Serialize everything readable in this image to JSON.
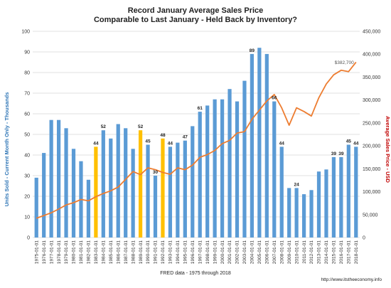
{
  "chart_data": {
    "type": "bar",
    "title": "Record January Average Sales Price",
    "subtitle": "Comparable to Last January - Held Back by Inventory?",
    "ylabel": "Units Sold - Current Month Only - Thousands",
    "y2label": "Average Sales Price - USD",
    "footer": "FRED data - 1975 through 2018",
    "credit": "http://www.itstheeconomy.info",
    "ylim": [
      0,
      100
    ],
    "y2lim": [
      0,
      450000
    ],
    "yticks": [
      "0",
      "10",
      "20",
      "30",
      "40",
      "50",
      "60",
      "70",
      "80",
      "90",
      "100"
    ],
    "y2ticks": [
      "0",
      "50,000",
      "100,000",
      "150,000",
      "200,000",
      "250,000",
      "300,000",
      "350,000",
      "400,000",
      "450,000"
    ],
    "grid": true,
    "categories": [
      "1975-01-01",
      "1976-01-01",
      "1977-01-01",
      "1978-01-01",
      "1979-01-01",
      "1980-01-01",
      "1981-01-01",
      "1982-01-01",
      "1983-01-01",
      "1984-01-01",
      "1985-01-01",
      "1986-01-01",
      "1987-01-01",
      "1988-01-01",
      "1989-01-01",
      "1990-01-01",
      "1991-01-01",
      "1992-01-01",
      "1993-01-01",
      "1994-01-01",
      "1995-01-01",
      "1996-01-01",
      "1997-01-01",
      "1998-01-01",
      "1999-01-01",
      "2000-01-01",
      "2001-01-01",
      "2002-01-01",
      "2003-01-01",
      "2004-01-01",
      "2005-01-01",
      "2006-01-01",
      "2007-01-01",
      "2008-01-01",
      "2009-01-01",
      "2010-01-01",
      "2011-01-01",
      "2012-01-01",
      "2013-01-01",
      "2014-01-01",
      "2015-01-01",
      "2016-01-01",
      "2017-01-01",
      "2018-01-01"
    ],
    "series": [
      {
        "kind": "bar",
        "axis": "left",
        "color": "#5b9bd5",
        "highlight_color": "#ffc000",
        "values": [
          29,
          41,
          57,
          57,
          53,
          43,
          37,
          28,
          44,
          52,
          48,
          55,
          53,
          43,
          52,
          45,
          30,
          48,
          44,
          46,
          47,
          54,
          61,
          64,
          67,
          67,
          72,
          66,
          76,
          89,
          92,
          89,
          66,
          44,
          24,
          24,
          21,
          23,
          32,
          33,
          39,
          39,
          45,
          44
        ],
        "highlight": [
          false,
          false,
          false,
          false,
          false,
          false,
          false,
          false,
          true,
          false,
          false,
          false,
          false,
          false,
          true,
          false,
          false,
          true,
          false,
          false,
          false,
          false,
          false,
          false,
          false,
          false,
          false,
          false,
          false,
          false,
          false,
          false,
          false,
          false,
          false,
          false,
          false,
          false,
          false,
          false,
          false,
          false,
          false,
          false
        ],
        "labels": [
          "",
          "",
          "",
          "",
          "",
          "",
          "",
          "",
          "44",
          "52",
          "",
          "",
          "",
          "",
          "52",
          "45",
          "30",
          "48",
          "44",
          "",
          "47",
          "",
          "61",
          "",
          "",
          "",
          "",
          "",
          "",
          "89",
          "",
          "",
          "66",
          "44",
          "",
          "24",
          "",
          "",
          "",
          "",
          "39",
          "39",
          "45",
          "44"
        ]
      },
      {
        "kind": "line",
        "axis": "right",
        "color": "#ed7d31",
        "values": [
          42000,
          48000,
          54000,
          62000,
          71000,
          76000,
          83000,
          80000,
          89000,
          96000,
          102000,
          110000,
          127000,
          144000,
          137000,
          152000,
          148000,
          142000,
          138000,
          152000,
          148000,
          158000,
          175000,
          181000,
          190000,
          205000,
          212000,
          228000,
          231000,
          258000,
          278000,
          298000,
          312000,
          283000,
          245000,
          283000,
          275000,
          265000,
          305000,
          335000,
          355000,
          365000,
          362000,
          382700
        ],
        "end_label": "$382,700"
      }
    ]
  }
}
